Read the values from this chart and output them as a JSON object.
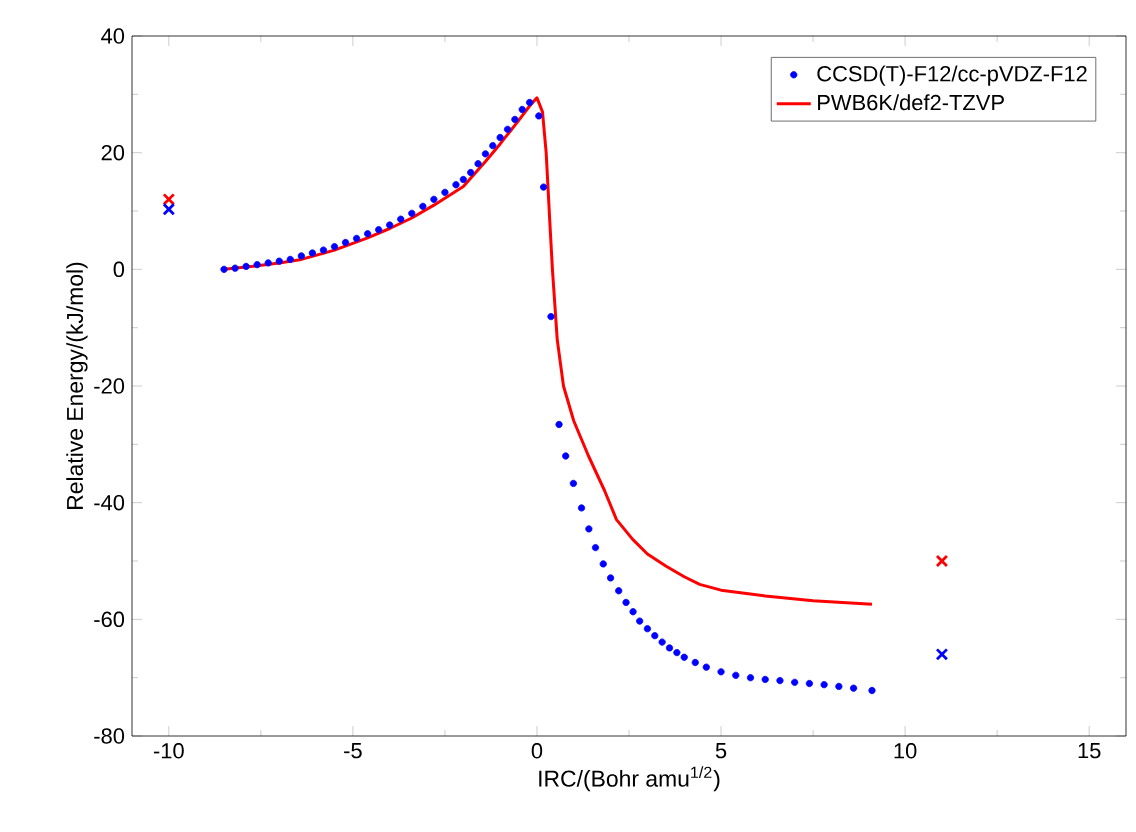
{
  "chart_data": {
    "type": "scatter",
    "xlabel": "IRC/(Bohr amu$^{1/2}$)",
    "ylabel": "Relative Energy/(kJ/mol)",
    "xlim": [
      -11,
      16
    ],
    "ylim": [
      -80,
      40
    ],
    "xticks": [
      -10,
      -5,
      0,
      5,
      10,
      15
    ],
    "yticks": [
      -80,
      -60,
      -40,
      -20,
      0,
      20,
      40
    ],
    "legend": "top right",
    "grid": false,
    "series": [
      {
        "name": "CCSD(T)-F12/cc-pVDZ-F12",
        "marker": "circle",
        "color": "#0000ff",
        "x": [
          -8.5,
          -8.2,
          -7.9,
          -7.6,
          -7.3,
          -7.0,
          -6.7,
          -6.4,
          -6.1,
          -5.8,
          -5.5,
          -5.2,
          -4.9,
          -4.6,
          -4.3,
          -4.0,
          -3.7,
          -3.4,
          -3.1,
          -2.8,
          -2.5,
          -2.2,
          -2.0,
          -1.8,
          -1.6,
          -1.4,
          -1.2,
          -1.0,
          -0.8,
          -0.6,
          -0.4,
          -0.2,
          0.05,
          0.18,
          0.38,
          0.6,
          0.78,
          0.99,
          1.21,
          1.41,
          1.59,
          1.8,
          2.0,
          2.22,
          2.42,
          2.61,
          2.79,
          3.0,
          3.2,
          3.4,
          3.6,
          3.8,
          4.0,
          4.3,
          4.6,
          5.0,
          5.4,
          5.8,
          6.2,
          6.6,
          7.0,
          7.4,
          7.8,
          8.2,
          8.6,
          9.1
        ],
        "values": [
          0,
          0.2,
          0.5,
          0.8,
          1.1,
          1.4,
          1.7,
          2.3,
          2.8,
          3.3,
          3.9,
          4.6,
          5.3,
          6.1,
          6.8,
          7.6,
          8.6,
          9.6,
          10.8,
          12.0,
          13.2,
          14.5,
          15.4,
          16.6,
          18.1,
          19.8,
          21.2,
          22.6,
          24.0,
          25.7,
          27.4,
          28.6,
          26.3,
          14.1,
          -8.1,
          -26.6,
          -32.0,
          -36.7,
          -40.9,
          -44.5,
          -47.7,
          -50.5,
          -52.9,
          -55.1,
          -57.1,
          -58.7,
          -60.3,
          -61.6,
          -62.8,
          -63.9,
          -64.9,
          -65.7,
          -66.5,
          -67.4,
          -68.2,
          -69.0,
          -69.6,
          -70.0,
          -70.3,
          -70.5,
          -70.8,
          -71.0,
          -71.2,
          -71.5,
          -71.8,
          -72.2
        ]
      },
      {
        "name": "PWB6K/def2-TZVP",
        "type": "line",
        "marker": "none",
        "color": "#ff0000",
        "x": [
          -8.5,
          -7.6,
          -7.0,
          -6.4,
          -5.5,
          -4.6,
          -4.0,
          -3.4,
          -2.8,
          -2.0,
          -1.4,
          -1.0,
          -0.5,
          -0.2,
          0.0,
          0.15,
          0.25,
          0.35,
          0.42,
          0.55,
          0.72,
          1.0,
          1.4,
          1.84,
          2.16,
          2.6,
          3.0,
          3.51,
          4.0,
          4.42,
          5.0,
          6.2,
          7.5,
          9.1
        ],
        "values": [
          0,
          0.6,
          1.1,
          1.7,
          3.3,
          5.4,
          7.0,
          8.8,
          11.0,
          14.2,
          18.5,
          21.5,
          25.5,
          28.0,
          29.4,
          27,
          20,
          8,
          0,
          -12,
          -20,
          -26,
          -32,
          -38,
          -42.9,
          -46.3,
          -48.8,
          -50.9,
          -52.7,
          -54,
          -55,
          -56,
          -56.8,
          -57.4
        ]
      },
      {
        "marker": "cross",
        "color": "#ff0000",
        "x": [
          -10,
          11
        ],
        "values": [
          12,
          -50
        ]
      },
      {
        "marker": "cross",
        "color": "#0000ff",
        "x": [
          -10,
          11
        ],
        "values": [
          10.3,
          -66
        ]
      }
    ]
  }
}
